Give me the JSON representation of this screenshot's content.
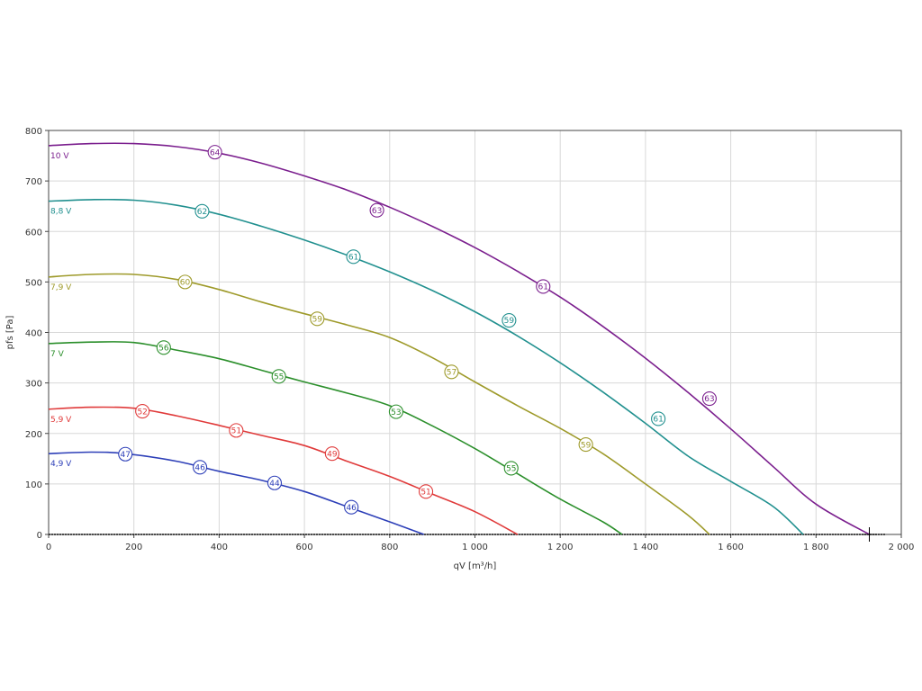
{
  "chart_data": {
    "type": "line",
    "xlabel": "qV [m³/h]",
    "ylabel": "pfs [Pa]",
    "xlim": [
      0,
      2000
    ],
    "ylim": [
      0,
      800
    ],
    "xticks": [
      0,
      200,
      400,
      600,
      800,
      1000,
      1200,
      1400,
      1600,
      1800,
      2000
    ],
    "xtick_labels": [
      "0",
      "200",
      "400",
      "600",
      "800",
      "1 000",
      "1 200",
      "1 400",
      "1 600",
      "1 800",
      "2 000"
    ],
    "yticks": [
      0,
      100,
      200,
      300,
      400,
      500,
      600,
      700,
      800
    ],
    "ytick_labels": [
      "0",
      "100",
      "200",
      "300",
      "400",
      "500",
      "600",
      "700",
      "800"
    ],
    "grid": true,
    "series": [
      {
        "name": "10 V",
        "color": "#7b1f8e",
        "points": [
          [
            0,
            770
          ],
          [
            100,
            774
          ],
          [
            200,
            774
          ],
          [
            300,
            768
          ],
          [
            400,
            755
          ],
          [
            500,
            735
          ],
          [
            600,
            710
          ],
          [
            700,
            682
          ],
          [
            800,
            648
          ],
          [
            900,
            610
          ],
          [
            1000,
            568
          ],
          [
            1100,
            521
          ],
          [
            1200,
            470
          ],
          [
            1300,
            412
          ],
          [
            1400,
            349
          ],
          [
            1500,
            281
          ],
          [
            1600,
            209
          ],
          [
            1700,
            134
          ],
          [
            1800,
            60
          ],
          [
            1925,
            0
          ]
        ],
        "markers": [
          {
            "x": 390,
            "y": 757,
            "label": "64"
          },
          {
            "x": 770,
            "y": 642,
            "label": "63"
          },
          {
            "x": 1160,
            "y": 491,
            "label": "61"
          },
          {
            "x": 1550,
            "y": 269,
            "label": "63"
          }
        ]
      },
      {
        "name": "8,8 V",
        "color": "#21908f",
        "points": [
          [
            0,
            660
          ],
          [
            100,
            663
          ],
          [
            200,
            662
          ],
          [
            300,
            652
          ],
          [
            400,
            634
          ],
          [
            500,
            610
          ],
          [
            600,
            583
          ],
          [
            700,
            553
          ],
          [
            800,
            520
          ],
          [
            900,
            483
          ],
          [
            1000,
            441
          ],
          [
            1100,
            393
          ],
          [
            1200,
            340
          ],
          [
            1300,
            282
          ],
          [
            1400,
            220
          ],
          [
            1500,
            155
          ],
          [
            1600,
            105
          ],
          [
            1700,
            55
          ],
          [
            1770,
            0
          ]
        ],
        "markers": [
          {
            "x": 360,
            "y": 640,
            "label": "62"
          },
          {
            "x": 715,
            "y": 550,
            "label": "61"
          },
          {
            "x": 1080,
            "y": 424,
            "label": "59"
          },
          {
            "x": 1430,
            "y": 229,
            "label": "61"
          }
        ]
      },
      {
        "name": "7,9 V",
        "color": "#9e9a2a",
        "points": [
          [
            0,
            510
          ],
          [
            100,
            515
          ],
          [
            200,
            515
          ],
          [
            300,
            505
          ],
          [
            400,
            485
          ],
          [
            500,
            460
          ],
          [
            600,
            437
          ],
          [
            700,
            415
          ],
          [
            800,
            390
          ],
          [
            900,
            350
          ],
          [
            1000,
            302
          ],
          [
            1100,
            255
          ],
          [
            1200,
            210
          ],
          [
            1300,
            160
          ],
          [
            1400,
            100
          ],
          [
            1500,
            38
          ],
          [
            1550,
            0
          ]
        ],
        "markers": [
          {
            "x": 320,
            "y": 500,
            "label": "60"
          },
          {
            "x": 630,
            "y": 427,
            "label": "59"
          },
          {
            "x": 945,
            "y": 322,
            "label": "57"
          },
          {
            "x": 1260,
            "y": 178,
            "label": "59"
          }
        ]
      },
      {
        "name": "7 V",
        "color": "#2b8f2b",
        "points": [
          [
            0,
            378
          ],
          [
            100,
            381
          ],
          [
            200,
            380
          ],
          [
            300,
            365
          ],
          [
            400,
            348
          ],
          [
            500,
            325
          ],
          [
            600,
            302
          ],
          [
            700,
            280
          ],
          [
            800,
            255
          ],
          [
            900,
            215
          ],
          [
            1000,
            170
          ],
          [
            1100,
            120
          ],
          [
            1200,
            70
          ],
          [
            1300,
            25
          ],
          [
            1345,
            0
          ]
        ],
        "markers": [
          {
            "x": 270,
            "y": 370,
            "label": "56"
          },
          {
            "x": 540,
            "y": 313,
            "label": "55"
          },
          {
            "x": 815,
            "y": 243,
            "label": "53"
          },
          {
            "x": 1085,
            "y": 131,
            "label": "55"
          }
        ]
      },
      {
        "name": "5,9 V",
        "color": "#e03a3a",
        "points": [
          [
            0,
            248
          ],
          [
            100,
            252
          ],
          [
            200,
            250
          ],
          [
            300,
            235
          ],
          [
            400,
            216
          ],
          [
            500,
            196
          ],
          [
            600,
            176
          ],
          [
            700,
            145
          ],
          [
            800,
            115
          ],
          [
            900,
            80
          ],
          [
            1000,
            45
          ],
          [
            1100,
            0
          ]
        ],
        "markers": [
          {
            "x": 220,
            "y": 244,
            "label": "52"
          },
          {
            "x": 440,
            "y": 206,
            "label": "51"
          },
          {
            "x": 665,
            "y": 160,
            "label": "49"
          },
          {
            "x": 885,
            "y": 85,
            "label": "51"
          }
        ]
      },
      {
        "name": "4,9 V",
        "color": "#2d3fb8",
        "points": [
          [
            0,
            160
          ],
          [
            100,
            163
          ],
          [
            180,
            160
          ],
          [
            300,
            145
          ],
          [
            400,
            125
          ],
          [
            500,
            107
          ],
          [
            600,
            85
          ],
          [
            700,
            55
          ],
          [
            800,
            25
          ],
          [
            880,
            0
          ]
        ],
        "markers": [
          {
            "x": 180,
            "y": 159,
            "label": "47"
          },
          {
            "x": 355,
            "y": 133,
            "label": "46"
          },
          {
            "x": 530,
            "y": 102,
            "label": "44"
          },
          {
            "x": 710,
            "y": 54,
            "label": "46"
          }
        ]
      }
    ],
    "reference_point": {
      "x": 1925,
      "y": 0
    }
  }
}
